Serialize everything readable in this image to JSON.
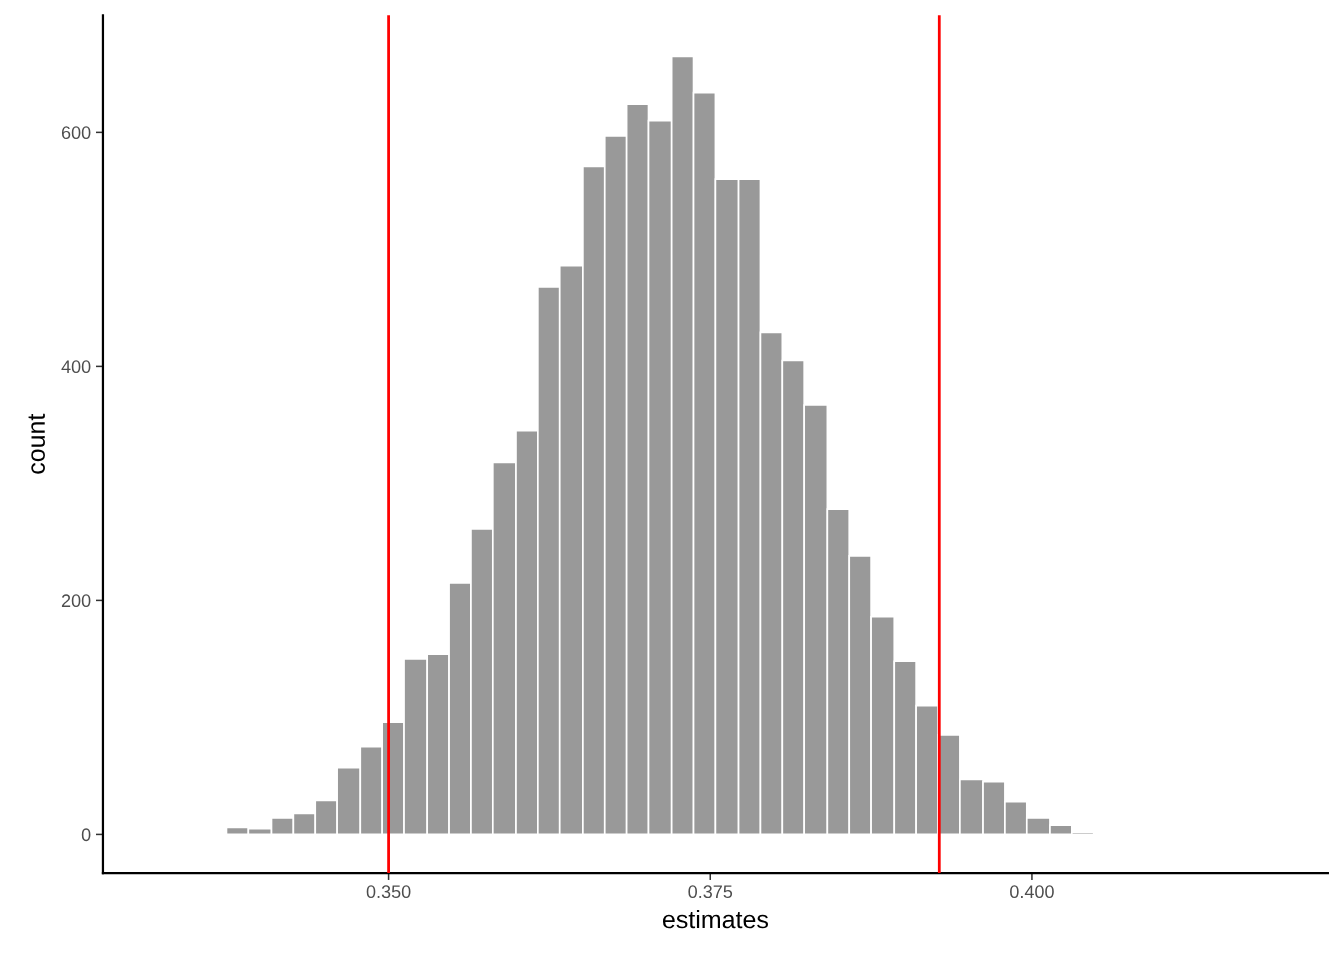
{
  "chart_data": {
    "type": "histogram",
    "xlabel": "estimates",
    "ylabel": "count",
    "bins": [
      0.3374,
      0.3391,
      0.3409,
      0.3426,
      0.3443,
      0.346,
      0.3478,
      0.3495,
      0.3512,
      0.353,
      0.3547,
      0.3564,
      0.3581,
      0.3599,
      0.3616,
      0.3633,
      0.3651,
      0.3668,
      0.3685,
      0.3702,
      0.372,
      0.3737,
      0.3754,
      0.3772,
      0.3789,
      0.3806,
      0.3823,
      0.3841,
      0.3858,
      0.3875,
      0.3893,
      0.391,
      0.3927,
      0.3944,
      0.3962,
      0.3979,
      0.3996,
      0.4014,
      0.4031,
      0.4048,
      0.4065,
      0.4083,
      0.41
    ],
    "values": [
      6,
      5,
      14,
      18,
      29,
      57,
      75,
      96,
      150,
      154,
      215,
      261,
      318,
      345,
      468,
      486,
      571,
      597,
      624,
      610,
      665,
      634,
      560,
      560,
      429,
      405,
      367,
      278,
      238,
      186,
      148,
      110,
      85,
      47,
      45,
      28,
      14,
      8,
      2,
      0,
      1,
      1
    ],
    "color": "#999999",
    "xlim": [
      0.3278,
      0.423
    ],
    "xticks": [
      {
        "value": 0.35,
        "label": "0.350"
      },
      {
        "value": 0.375,
        "label": "0.375"
      },
      {
        "value": 0.4,
        "label": "0.400"
      }
    ],
    "ylim": [
      -33,
      700
    ],
    "yticks": [
      0,
      200,
      400,
      600
    ],
    "ref_lines": [
      {
        "axis": "x",
        "value": 0.35,
        "color": "#ff0000"
      },
      {
        "axis": "x",
        "value": 0.3928,
        "color": "#ff0000"
      }
    ],
    "grid": false
  }
}
